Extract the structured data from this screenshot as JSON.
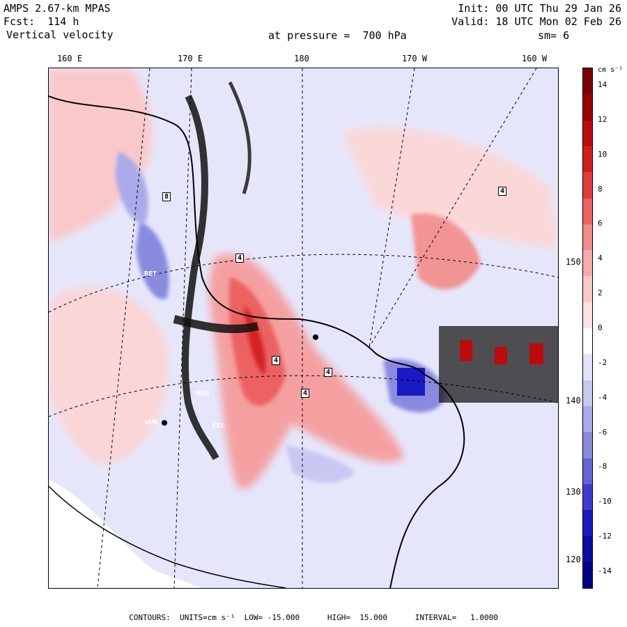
{
  "header": {
    "model": "AMPS 2.67-km MPAS",
    "forecast": "Fcst:  114 h",
    "field": "Vertical velocity",
    "init": "Init: 00 UTC Thu 29 Jan 26",
    "valid": "Valid: 18 UTC Mon 02 Feb 26",
    "pressure": "at pressure =  700 hPa",
    "smoothing": "sm= 6"
  },
  "axes": {
    "lon_labels": [
      "160 E",
      "170 E",
      "180",
      "170 W",
      "160 W"
    ],
    "lat_labels": [
      "150 W",
      "140 W",
      "130",
      "120"
    ]
  },
  "colorbar": {
    "units_label": "cm s⁻¹",
    "tick_labels": [
      "14",
      "12",
      "10",
      "8",
      "6",
      "4",
      "2",
      "0",
      "-2",
      "-4",
      "-6",
      "-8",
      "-10",
      "-12",
      "-14"
    ],
    "colors": [
      "#7a0000",
      "#9e0000",
      "#be0a0a",
      "#d41c1c",
      "#e63a3a",
      "#f06262",
      "#f58a8a",
      "#f8aaaa",
      "#fbc8c8",
      "#fde3e3",
      "#ffffff",
      "#e3e3fb",
      "#c8c8f3",
      "#aaaaea",
      "#8a8ae0",
      "#6464d8",
      "#3c3cd0",
      "#1a1ac4",
      "#0a0aa8",
      "#00008a"
    ]
  },
  "stations": [
    "4",
    "4",
    "4",
    "4",
    "4",
    "8",
    "RET",
    "MAN",
    "WUN",
    "CEL"
  ],
  "footer": {
    "text": "CONTOURS:  UNITS=cm s⁻¹  LOW= -15.000      HIGH=  15.000      INTERVAL=   1.0000"
  }
}
